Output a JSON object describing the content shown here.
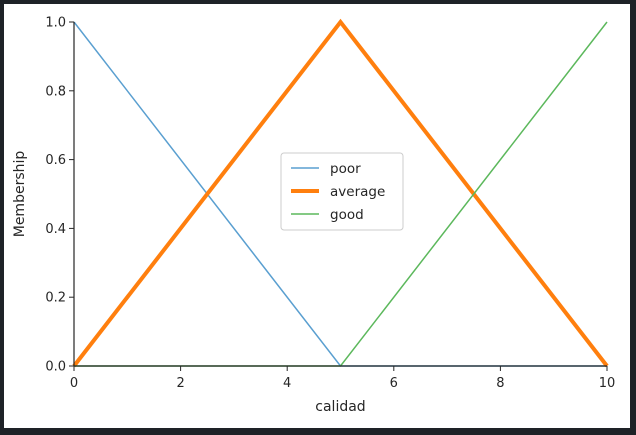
{
  "chart_data": {
    "type": "line",
    "title": "",
    "xlabel": "calidad",
    "ylabel": "Membership",
    "xlim": [
      0,
      10
    ],
    "ylim": [
      0,
      1
    ],
    "xticks": [
      0,
      2,
      4,
      6,
      8,
      10
    ],
    "yticks": [
      0.0,
      0.2,
      0.4,
      0.6,
      0.8,
      1.0
    ],
    "ytick_labels": [
      "0.0",
      "0.2",
      "0.4",
      "0.6",
      "0.8",
      "1.0"
    ],
    "grid": false,
    "legend_position": "center",
    "series": [
      {
        "name": "poor",
        "color": "#5a9fd0",
        "linewidth": 1.5,
        "x": [
          0,
          5,
          10
        ],
        "y": [
          1,
          0,
          0
        ]
      },
      {
        "name": "average",
        "color": "#ff7f0e",
        "linewidth": 4,
        "x": [
          0,
          5,
          10
        ],
        "y": [
          0,
          1,
          0
        ]
      },
      {
        "name": "good",
        "color": "#5cb85c",
        "linewidth": 1.5,
        "x": [
          0,
          5,
          10
        ],
        "y": [
          0,
          0,
          1
        ]
      }
    ]
  }
}
